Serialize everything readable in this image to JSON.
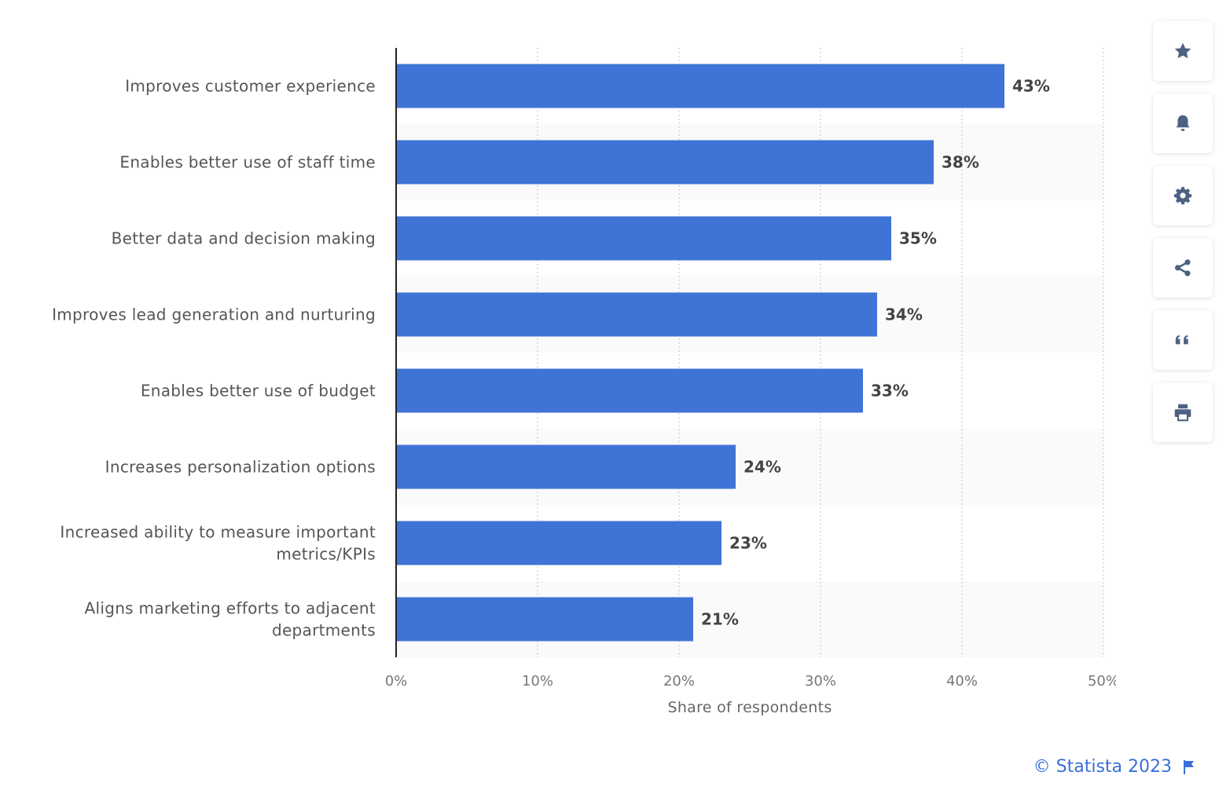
{
  "chart_data": {
    "type": "bar",
    "orientation": "horizontal",
    "categories": [
      "Improves customer experience",
      "Enables better use of staff time",
      "Better data and decision making",
      "Improves lead generation and nurturing",
      "Enables better use of budget",
      "Increases personalization options",
      "Increased ability to measure important metrics/KPIs",
      "Aligns marketing efforts to adjacent departments"
    ],
    "category_lines": [
      [
        "Improves customer experience"
      ],
      [
        "Enables better use of staff time"
      ],
      [
        "Better data and decision making"
      ],
      [
        "Improves lead generation and nurturing"
      ],
      [
        "Enables better use of budget"
      ],
      [
        "Increases personalization options"
      ],
      [
        "Increased ability to measure important",
        "metrics/KPIs"
      ],
      [
        "Aligns marketing efforts to adjacent",
        "departments"
      ]
    ],
    "values": [
      43,
      38,
      35,
      34,
      33,
      24,
      23,
      21
    ],
    "value_labels": [
      "43%",
      "38%",
      "35%",
      "34%",
      "33%",
      "24%",
      "23%",
      "21%"
    ],
    "xlim": [
      0,
      50
    ],
    "ticks": [
      0,
      10,
      20,
      30,
      40,
      50
    ],
    "tick_labels": [
      "0%",
      "10%",
      "20%",
      "30%",
      "40%",
      "50%"
    ],
    "xlabel": "Share of respondents",
    "ylabel": "",
    "title": "",
    "grid": true,
    "bar_color": "#3f74d6",
    "band_color": "#fafafa"
  },
  "toolbar": {
    "buttons": [
      {
        "name": "favorite",
        "icon": "star-icon"
      },
      {
        "name": "notification",
        "icon": "bell-icon"
      },
      {
        "name": "settings",
        "icon": "gear-icon"
      },
      {
        "name": "share",
        "icon": "share-icon"
      },
      {
        "name": "cite",
        "icon": "quote-icon"
      },
      {
        "name": "print",
        "icon": "print-icon"
      }
    ],
    "icon_color": "#4d6183"
  },
  "credit": {
    "text": "© Statista 2023",
    "icon": "flag-icon",
    "color": "#3a6fd8"
  }
}
